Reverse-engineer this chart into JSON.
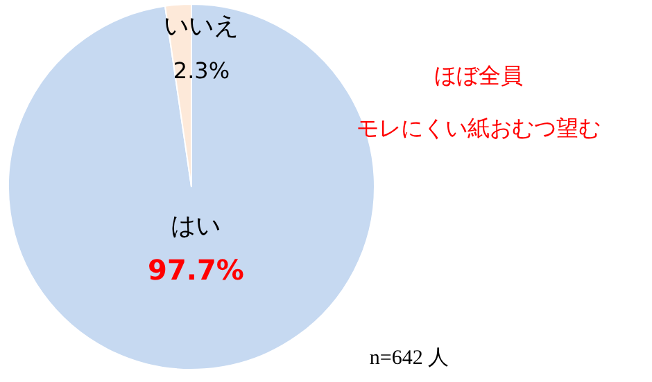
{
  "chart_data": {
    "type": "pie",
    "categories": [
      "はい",
      "いいえ"
    ],
    "values": [
      97.7,
      2.3
    ],
    "colors": [
      "#c6d9f1",
      "#fde9d9"
    ],
    "value_labels": [
      "97.7%",
      "2.3%"
    ],
    "annotations": [
      "ほぼ全員",
      "モレにくい紙おむつ望む",
      "n=642 人"
    ]
  }
}
